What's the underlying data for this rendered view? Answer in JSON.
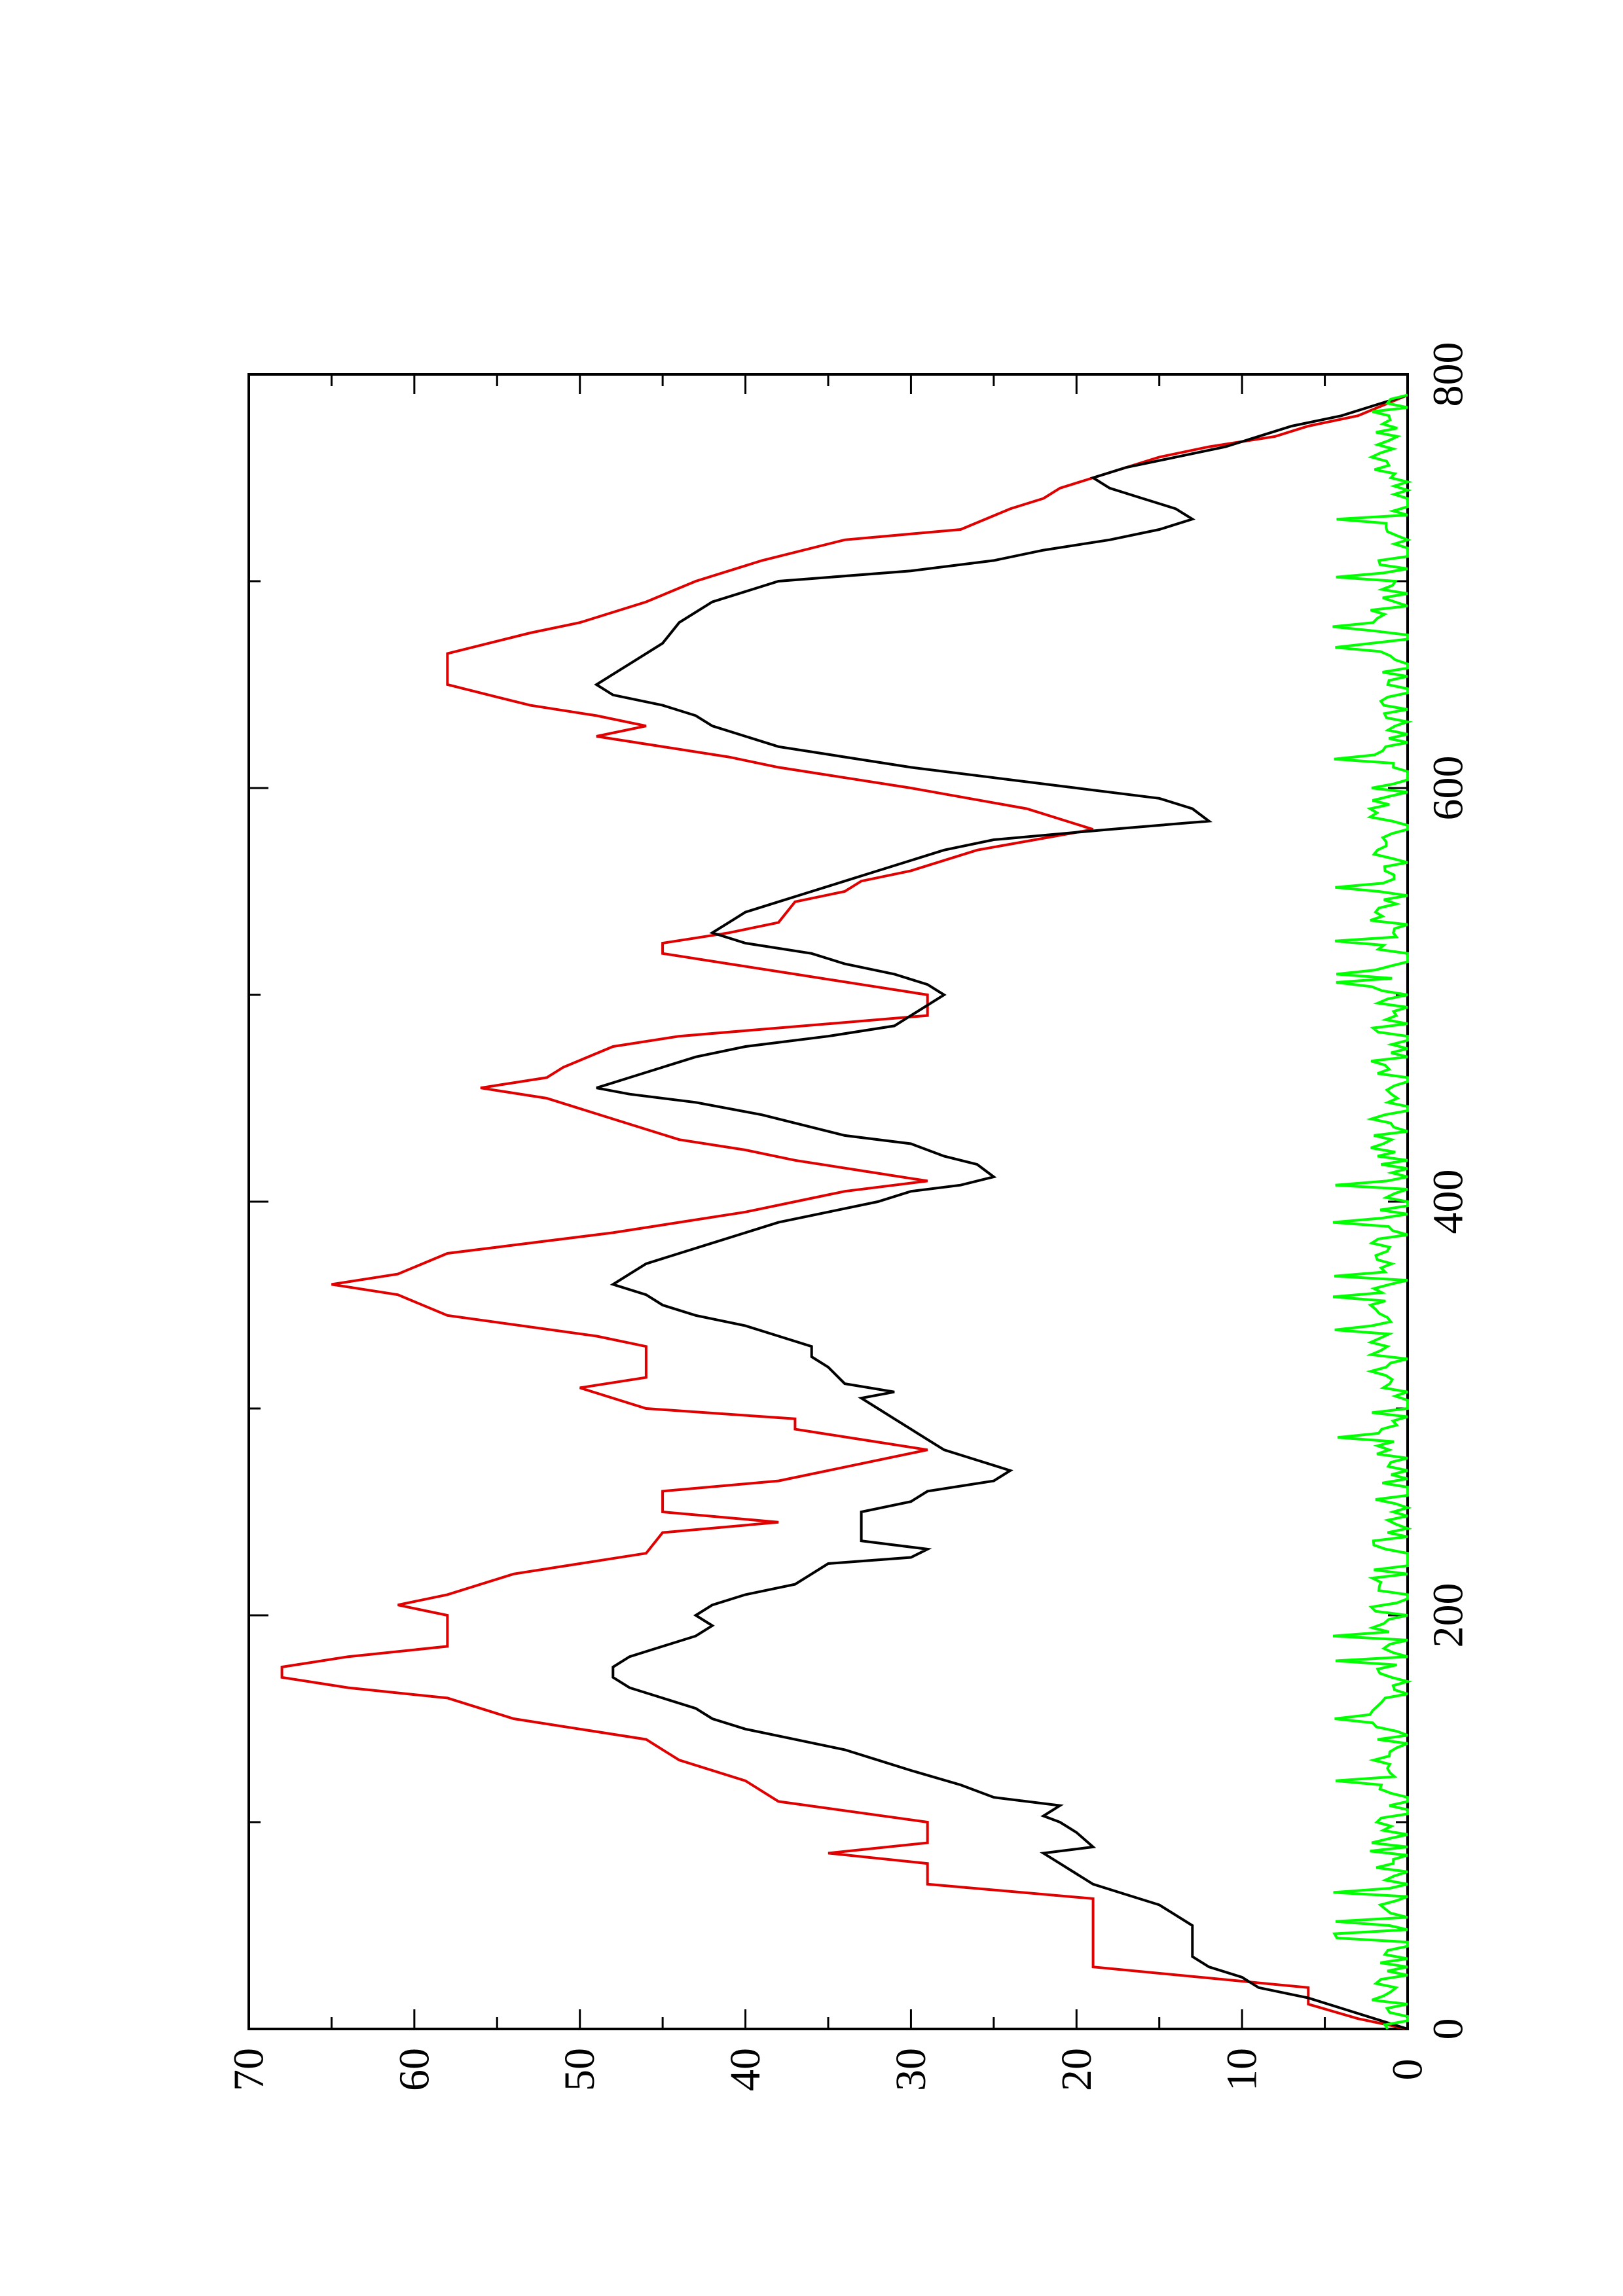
{
  "chart_data": {
    "type": "line",
    "title": "",
    "xlabel": "",
    "ylabel": "",
    "orientation": "rotated-90-counterclockwise",
    "xlim": [
      0,
      800
    ],
    "ylim": [
      0,
      70
    ],
    "x_ticks": [
      "0",
      "200",
      "400",
      "600",
      "800"
    ],
    "y_ticks": [
      "0",
      "10",
      "20",
      "30",
      "40",
      "50",
      "60",
      "70"
    ],
    "grid": false,
    "legend": "none",
    "series": [
      {
        "color": "#e00000",
        "step": true,
        "points": [
          [
            0,
            0
          ],
          [
            5,
            3
          ],
          [
            12,
            6
          ],
          [
            20,
            6
          ],
          [
            30,
            19
          ],
          [
            63,
            19
          ],
          [
            70,
            29
          ],
          [
            80,
            29
          ],
          [
            85,
            35
          ],
          [
            90,
            29
          ],
          [
            100,
            29
          ],
          [
            110,
            38
          ],
          [
            120,
            40
          ],
          [
            130,
            44
          ],
          [
            140,
            46
          ],
          [
            150,
            54
          ],
          [
            160,
            58
          ],
          [
            165,
            64
          ],
          [
            170,
            68
          ],
          [
            175,
            68
          ],
          [
            180,
            64
          ],
          [
            185,
            58
          ],
          [
            200,
            58
          ],
          [
            205,
            61
          ],
          [
            210,
            58
          ],
          [
            220,
            54
          ],
          [
            230,
            46
          ],
          [
            240,
            45
          ],
          [
            245,
            38
          ],
          [
            250,
            45
          ],
          [
            260,
            45
          ],
          [
            265,
            38
          ],
          [
            280,
            29
          ],
          [
            285,
            33
          ],
          [
            290,
            37
          ],
          [
            295,
            37
          ],
          [
            300,
            46
          ],
          [
            310,
            50
          ],
          [
            315,
            46
          ],
          [
            330,
            46
          ],
          [
            335,
            49
          ],
          [
            345,
            58
          ],
          [
            355,
            61
          ],
          [
            360,
            65
          ],
          [
            365,
            61
          ],
          [
            375,
            58
          ],
          [
            385,
            48
          ],
          [
            395,
            40
          ],
          [
            400,
            37
          ],
          [
            405,
            34
          ],
          [
            410,
            29
          ],
          [
            415,
            33
          ],
          [
            420,
            37
          ],
          [
            425,
            40
          ],
          [
            430,
            44
          ],
          [
            440,
            48
          ],
          [
            450,
            52
          ],
          [
            455,
            56
          ],
          [
            460,
            52
          ],
          [
            465,
            51
          ],
          [
            475,
            48
          ],
          [
            480,
            44
          ],
          [
            490,
            29
          ],
          [
            500,
            29
          ],
          [
            505,
            33
          ],
          [
            510,
            37
          ],
          [
            515,
            41
          ],
          [
            520,
            45
          ],
          [
            525,
            45
          ],
          [
            530,
            41
          ],
          [
            535,
            38
          ],
          [
            545,
            37
          ],
          [
            550,
            34
          ],
          [
            555,
            33
          ],
          [
            560,
            30
          ],
          [
            570,
            26
          ],
          [
            580,
            19
          ],
          [
            590,
            23
          ],
          [
            600,
            30
          ],
          [
            605,
            34
          ],
          [
            610,
            38
          ],
          [
            615,
            41
          ],
          [
            625,
            49
          ],
          [
            630,
            46
          ],
          [
            635,
            49
          ],
          [
            640,
            53
          ],
          [
            650,
            58
          ],
          [
            665,
            58
          ],
          [
            675,
            53
          ],
          [
            680,
            50
          ],
          [
            690,
            46
          ],
          [
            700,
            43
          ],
          [
            710,
            39
          ],
          [
            720,
            34
          ],
          [
            725,
            27
          ],
          [
            735,
            24
          ],
          [
            740,
            22
          ],
          [
            745,
            21
          ],
          [
            750,
            19
          ],
          [
            760,
            15
          ],
          [
            765,
            12
          ],
          [
            770,
            8
          ],
          [
            775,
            6
          ],
          [
            780,
            3
          ],
          [
            790,
            0
          ]
        ]
      },
      {
        "color": "#000000",
        "step": false,
        "points": [
          [
            0,
            0
          ],
          [
            5,
            2
          ],
          [
            10,
            4
          ],
          [
            15,
            6
          ],
          [
            20,
            9
          ],
          [
            25,
            10
          ],
          [
            30,
            12
          ],
          [
            35,
            13
          ],
          [
            40,
            13
          ],
          [
            45,
            13
          ],
          [
            50,
            13
          ],
          [
            55,
            14
          ],
          [
            60,
            15
          ],
          [
            65,
            17
          ],
          [
            70,
            19
          ],
          [
            75,
            20
          ],
          [
            80,
            21
          ],
          [
            85,
            22
          ],
          [
            88,
            19
          ],
          [
            95,
            20
          ],
          [
            100,
            21
          ],
          [
            103,
            22
          ],
          [
            108,
            21
          ],
          [
            112,
            25
          ],
          [
            118,
            27
          ],
          [
            125,
            30
          ],
          [
            130,
            32
          ],
          [
            135,
            34
          ],
          [
            140,
            37
          ],
          [
            145,
            40
          ],
          [
            150,
            42
          ],
          [
            155,
            43
          ],
          [
            160,
            45
          ],
          [
            165,
            47
          ],
          [
            170,
            48
          ],
          [
            175,
            48
          ],
          [
            180,
            47
          ],
          [
            185,
            45
          ],
          [
            190,
            43
          ],
          [
            195,
            42
          ],
          [
            200,
            43
          ],
          [
            205,
            42
          ],
          [
            210,
            40
          ],
          [
            215,
            37
          ],
          [
            220,
            36
          ],
          [
            225,
            35
          ],
          [
            228,
            30
          ],
          [
            232,
            29
          ],
          [
            236,
            33
          ],
          [
            240,
            33
          ],
          [
            245,
            33
          ],
          [
            250,
            33
          ],
          [
            255,
            30
          ],
          [
            260,
            29
          ],
          [
            265,
            25
          ],
          [
            270,
            24
          ],
          [
            275,
            26
          ],
          [
            280,
            28
          ],
          [
            285,
            29
          ],
          [
            290,
            30
          ],
          [
            295,
            31
          ],
          [
            300,
            32
          ],
          [
            305,
            33
          ],
          [
            308,
            31
          ],
          [
            312,
            34
          ],
          [
            320,
            35
          ],
          [
            325,
            36
          ],
          [
            330,
            36
          ],
          [
            335,
            38
          ],
          [
            340,
            40
          ],
          [
            345,
            43
          ],
          [
            350,
            45
          ],
          [
            355,
            46
          ],
          [
            360,
            48
          ],
          [
            365,
            47
          ],
          [
            370,
            46
          ],
          [
            375,
            44
          ],
          [
            380,
            42
          ],
          [
            385,
            40
          ],
          [
            390,
            38
          ],
          [
            395,
            35
          ],
          [
            400,
            32
          ],
          [
            405,
            30
          ],
          [
            408,
            27
          ],
          [
            412,
            25
          ],
          [
            418,
            26
          ],
          [
            422,
            28
          ],
          [
            428,
            30
          ],
          [
            432,
            34
          ],
          [
            438,
            37
          ],
          [
            442,
            39
          ],
          [
            448,
            43
          ],
          [
            452,
            47
          ],
          [
            455,
            49
          ],
          [
            460,
            47
          ],
          [
            465,
            45
          ],
          [
            470,
            43
          ],
          [
            475,
            40
          ],
          [
            480,
            35
          ],
          [
            485,
            31
          ],
          [
            490,
            30
          ],
          [
            495,
            29
          ],
          [
            500,
            28
          ],
          [
            505,
            29
          ],
          [
            510,
            31
          ],
          [
            515,
            34
          ],
          [
            520,
            36
          ],
          [
            525,
            40
          ],
          [
            530,
            42
          ],
          [
            535,
            41
          ],
          [
            540,
            40
          ],
          [
            545,
            38
          ],
          [
            550,
            36
          ],
          [
            555,
            34
          ],
          [
            560,
            32
          ],
          [
            565,
            30
          ],
          [
            570,
            28
          ],
          [
            575,
            25
          ],
          [
            580,
            18
          ],
          [
            584,
            12
          ],
          [
            590,
            13
          ],
          [
            595,
            15
          ],
          [
            600,
            20
          ],
          [
            605,
            25
          ],
          [
            610,
            30
          ],
          [
            615,
            34
          ],
          [
            620,
            38
          ],
          [
            625,
            40
          ],
          [
            630,
            42
          ],
          [
            635,
            43
          ],
          [
            640,
            45
          ],
          [
            645,
            48
          ],
          [
            650,
            49
          ],
          [
            655,
            48
          ],
          [
            660,
            47
          ],
          [
            670,
            45
          ],
          [
            680,
            44
          ],
          [
            690,
            42
          ],
          [
            700,
            38
          ],
          [
            705,
            30
          ],
          [
            710,
            25
          ],
          [
            715,
            22
          ],
          [
            720,
            18
          ],
          [
            725,
            15
          ],
          [
            730,
            13
          ],
          [
            735,
            14
          ],
          [
            740,
            16
          ],
          [
            745,
            18
          ],
          [
            750,
            19
          ],
          [
            755,
            17
          ],
          [
            760,
            14
          ],
          [
            765,
            11
          ],
          [
            770,
            9
          ],
          [
            775,
            7
          ],
          [
            780,
            4
          ],
          [
            785,
            2
          ],
          [
            790,
            0
          ]
        ]
      },
      {
        "color": "#00ff00",
        "step": false,
        "noise_max": 3.5,
        "points": [
          [
            0,
            0
          ],
          [
            800,
            0
          ]
        ]
      }
    ]
  }
}
